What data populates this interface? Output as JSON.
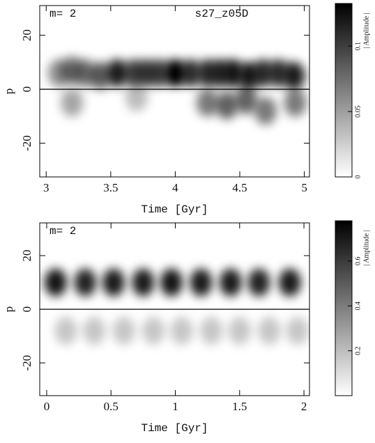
{
  "chart_data": [
    {
      "type": "heatmap",
      "label": "m= 2",
      "annotation": "s27_z05D",
      "xlabel": "Time [Gyr]",
      "ylabel": "p",
      "xlim": [
        2.95,
        5.04
      ],
      "xticks": [
        3,
        3.5,
        4,
        4.5,
        5
      ],
      "ylim": [
        -32.5,
        31
      ],
      "yticks": [
        -20,
        0,
        20
      ],
      "hline": 0,
      "clim": [
        0,
        0.131
      ],
      "cticks": [
        0,
        0.05,
        0.1
      ],
      "clabel": "| Amplitude |",
      "color": "#000000",
      "features": {
        "x": [
          3.1,
          3.2,
          3.3,
          3.42,
          3.55,
          3.68,
          3.78,
          3.88,
          4.0,
          4.12,
          4.25,
          4.35,
          4.45,
          4.57,
          4.68,
          4.8,
          4.92,
          3.2,
          3.7,
          4.25,
          4.4,
          4.55,
          4.7,
          4.93
        ],
        "p": [
          6,
          7,
          6,
          5,
          6,
          6,
          6,
          6,
          6,
          6,
          6,
          6,
          6,
          5,
          6,
          6,
          5,
          -5,
          -3,
          -5,
          -6,
          -4,
          -8,
          -5
        ],
        "amplitude": [
          0.05,
          0.06,
          0.06,
          0.07,
          0.1,
          0.08,
          0.08,
          0.08,
          0.12,
          0.09,
          0.09,
          0.09,
          0.1,
          0.1,
          0.09,
          0.09,
          0.1,
          0.04,
          0.03,
          0.06,
          0.07,
          0.07,
          0.06,
          0.06
        ]
      }
    },
    {
      "type": "heatmap",
      "label": "m= 2",
      "xlabel": "Time [Gyr]",
      "ylabel": "p",
      "xlim": [
        -0.054,
        2.043
      ],
      "xticks": [
        0,
        0.5,
        1,
        1.5,
        2
      ],
      "ylim": [
        -32.2,
        32.2
      ],
      "yticks": [
        -20,
        0,
        20
      ],
      "hline": 0,
      "clim": [
        0,
        0.77
      ],
      "cticks": [
        0.2,
        0.4,
        0.6
      ],
      "clabel": "| Amplitude |",
      "color": "#000000",
      "features": {
        "x": [
          0.07,
          0.3,
          0.52,
          0.75,
          0.97,
          1.2,
          1.43,
          1.65,
          1.89,
          0.15,
          0.37,
          0.6,
          0.83,
          1.05,
          1.28,
          1.5,
          1.73,
          1.95
        ],
        "p": [
          10,
          10,
          10,
          10,
          10,
          10,
          10,
          10,
          10,
          -8,
          -8,
          -8,
          -8,
          -8,
          -8,
          -8,
          -8,
          -8
        ],
        "amplitude": [
          0.62,
          0.58,
          0.6,
          0.6,
          0.62,
          0.6,
          0.6,
          0.58,
          0.6,
          0.15,
          0.15,
          0.15,
          0.15,
          0.15,
          0.15,
          0.15,
          0.15,
          0.15
        ]
      }
    }
  ]
}
